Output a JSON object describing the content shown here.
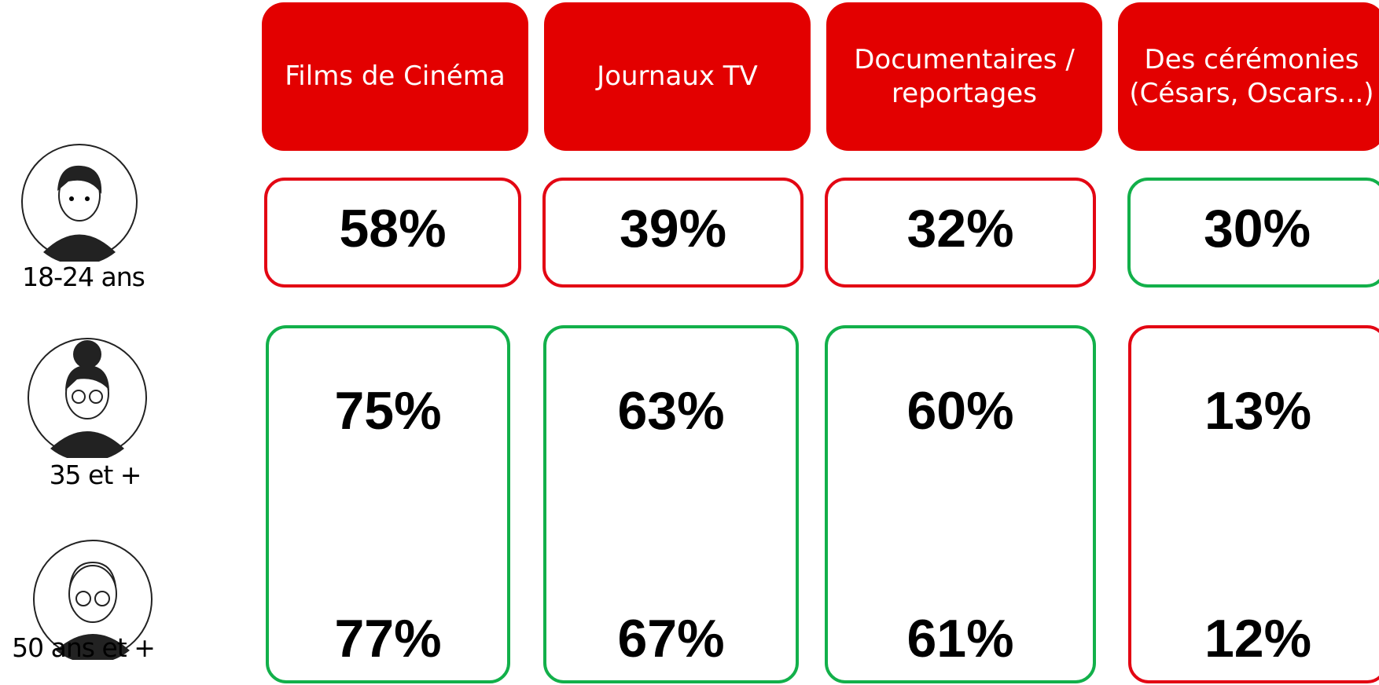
{
  "columns": [
    "Films de Cinéma",
    "Journaux TV",
    "Documentaires / reportages",
    "Des cérémonies (Césars, Oscars...)"
  ],
  "row_labels": [
    "18-24 ans",
    "35 et +",
    "50 ans et +"
  ],
  "top": [
    {
      "value": "58%",
      "border": "#e30613"
    },
    {
      "value": "39%",
      "border": "#e30613"
    },
    {
      "value": "32%",
      "border": "#e30613"
    },
    {
      "value": "30%",
      "border": "#12b04a"
    }
  ],
  "bottom": [
    {
      "values": [
        "75%",
        "77%"
      ],
      "border": "#12b04a"
    },
    {
      "values": [
        "63%",
        "67%"
      ],
      "border": "#12b04a"
    },
    {
      "values": [
        "60%",
        "61%"
      ],
      "border": "#12b04a"
    },
    {
      "values": [
        "13%",
        "12%"
      ],
      "border": "#e30613"
    }
  ]
}
